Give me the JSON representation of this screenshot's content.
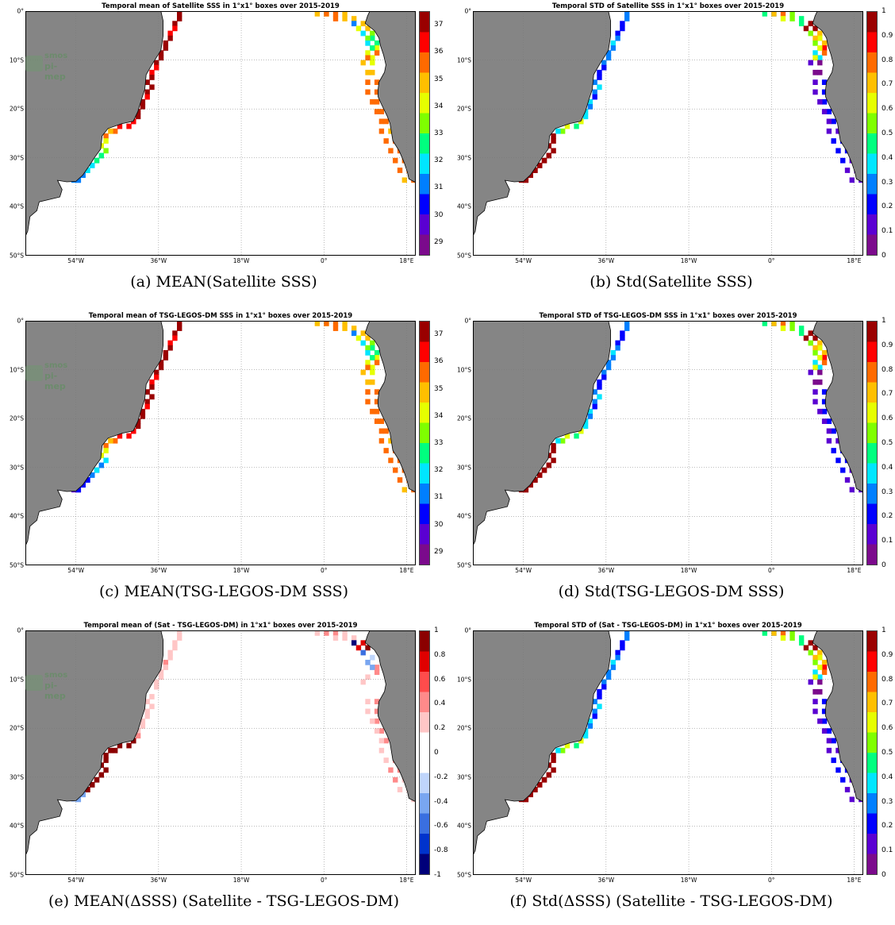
{
  "map_axes": {
    "lat_labels": [
      "0°",
      "10°S",
      "20°S",
      "30°S",
      "40°S",
      "50°S"
    ],
    "lat_values": [
      0,
      -10,
      -20,
      -30,
      -40,
      -50
    ],
    "lon_labels": [
      "54°W",
      "36°W",
      "18°W",
      "0°",
      "18°E"
    ],
    "lon_values": [
      -54,
      -36,
      -18,
      0,
      18
    ],
    "extent": {
      "lon_min": -65,
      "lon_max": 20,
      "lat_min": -50,
      "lat_max": 0
    },
    "grid": "dotted",
    "land_color": "#858585",
    "ocean_color": "#ffffff"
  },
  "watermark": {
    "line1": "smos",
    "line2": "pi-mep"
  },
  "colormaps": {
    "jet": [
      "#7b0a8c",
      "#5a00d2",
      "#0000ff",
      "#007fff",
      "#00e6ff",
      "#00ff7f",
      "#7fff00",
      "#e6ff00",
      "#ffbf00",
      "#ff6a00",
      "#ff0000",
      "#9a0000"
    ],
    "diverging": [
      "#00007a",
      "#0033cc",
      "#3a6fe0",
      "#79a6f0",
      "#bfd5fb",
      "#ffffff",
      "#ffffff",
      "#ffc6c6",
      "#ff8a8a",
      "#ff4c4c",
      "#e00000",
      "#8b0000"
    ]
  },
  "panels": [
    {
      "title": "Temporal mean of Satellite SSS in 1°x1° boxes over 2015-2019",
      "caption": "(a) MEAN(Satellite SSS)",
      "colorbar": {
        "cmap": "jet",
        "min": 28.5,
        "max": 37.5,
        "ticks": [
          "37",
          "36",
          "35",
          "34",
          "33",
          "32",
          "31",
          "30",
          "29"
        ],
        "tick_values": [
          37,
          36,
          35,
          34,
          33,
          32,
          31,
          30,
          29
        ]
      },
      "field": "mean_sss_sat",
      "show_watermark": true
    },
    {
      "title": "Temporal STD of Satellite SSS in 1°x1° boxes over 2015-2019",
      "caption": "(b) Std(Satellite SSS)",
      "colorbar": {
        "cmap": "jet",
        "min": 0,
        "max": 1,
        "ticks": [
          "1",
          "0.9",
          "0.8",
          "0.7",
          "0.6",
          "0.5",
          "0.4",
          "0.3",
          "0.2",
          "0.1",
          "0"
        ],
        "tick_values": [
          1,
          0.9,
          0.8,
          0.7,
          0.6,
          0.5,
          0.4,
          0.3,
          0.2,
          0.1,
          0
        ]
      },
      "field": "std_sss_sat",
      "show_watermark": false
    },
    {
      "title": "Temporal mean of TSG-LEGOS-DM SSS in 1°x1° boxes over 2015-2019",
      "caption": "(c) MEAN(TSG-LEGOS-DM SSS)",
      "colorbar": {
        "cmap": "jet",
        "min": 28.5,
        "max": 37.5,
        "ticks": [
          "37",
          "36",
          "35",
          "34",
          "33",
          "32",
          "31",
          "30",
          "29"
        ],
        "tick_values": [
          37,
          36,
          35,
          34,
          33,
          32,
          31,
          30,
          29
        ]
      },
      "field": "mean_sss_tsg",
      "show_watermark": true
    },
    {
      "title": "Temporal STD of TSG-LEGOS-DM SSS in 1°x1° boxes over 2015-2019",
      "caption": "(d) Std(TSG-LEGOS-DM SSS)",
      "colorbar": {
        "cmap": "jet",
        "min": 0,
        "max": 1,
        "ticks": [
          "1",
          "0.9",
          "0.8",
          "0.7",
          "0.6",
          "0.5",
          "0.4",
          "0.3",
          "0.2",
          "0.1",
          "0"
        ],
        "tick_values": [
          1,
          0.9,
          0.8,
          0.7,
          0.6,
          0.5,
          0.4,
          0.3,
          0.2,
          0.1,
          0
        ]
      },
      "field": "std_sss_tsg",
      "show_watermark": false
    },
    {
      "title": "Temporal mean of (Sat - TSG-LEGOS-DM) in 1°x1° boxes over 2015-2019",
      "caption": "(e) MEAN(ΔSSS) (Satellite - TSG-LEGOS-DM)",
      "colorbar": {
        "cmap": "diverging",
        "min": -1,
        "max": 1,
        "ticks": [
          "1",
          "0.8",
          "0.6",
          "0.4",
          "0.2",
          "0",
          "-0.2",
          "-0.4",
          "-0.6",
          "-0.8",
          "-1"
        ],
        "tick_values": [
          1,
          0.8,
          0.6,
          0.4,
          0.2,
          0,
          -0.2,
          -0.4,
          -0.6,
          -0.8,
          -1
        ]
      },
      "field": "mean_dsss",
      "show_watermark": true
    },
    {
      "title": "Temporal STD of (Sat - TSG-LEGOS-DM) in 1°x1° boxes over 2015-2019",
      "caption": "(f) Std(ΔSSS) (Satellite - TSG-LEGOS-DM)",
      "colorbar": {
        "cmap": "jet",
        "min": 0,
        "max": 1,
        "ticks": [
          "1",
          "0.9",
          "0.8",
          "0.7",
          "0.6",
          "0.5",
          "0.4",
          "0.3",
          "0.2",
          "0.1",
          "0"
        ],
        "tick_values": [
          1,
          0.9,
          0.8,
          0.7,
          0.6,
          0.5,
          0.4,
          0.3,
          0.2,
          0.1,
          0
        ]
      },
      "field": "std_dsss",
      "show_watermark": false
    }
  ],
  "coast": {
    "south_america": [
      [
        -65,
        0
      ],
      [
        -35.5,
        0
      ],
      [
        -35,
        -2
      ],
      [
        -35,
        -5
      ],
      [
        -35.5,
        -8
      ],
      [
        -37.5,
        -11
      ],
      [
        -38.7,
        -13
      ],
      [
        -39,
        -16
      ],
      [
        -39.7,
        -18
      ],
      [
        -40.5,
        -20.5
      ],
      [
        -41.5,
        -22.5
      ],
      [
        -44,
        -23
      ],
      [
        -47,
        -24
      ],
      [
        -48.3,
        -25.5
      ],
      [
        -48.6,
        -28.2
      ],
      [
        -50,
        -30
      ],
      [
        -51,
        -31.5
      ],
      [
        -52.5,
        -33.5
      ],
      [
        -54,
        -34.8
      ],
      [
        -56,
        -34.9
      ],
      [
        -58,
        -34.6
      ],
      [
        -57,
        -36.5
      ],
      [
        -57.5,
        -38
      ],
      [
        -62,
        -39
      ],
      [
        -62.5,
        -40.8
      ],
      [
        -64,
        -42
      ],
      [
        -64.5,
        -45
      ],
      [
        -65,
        -46
      ],
      [
        -65,
        -50
      ]
    ],
    "africa": [
      [
        20,
        0
      ],
      [
        10,
        0
      ],
      [
        9.5,
        -1
      ],
      [
        9,
        -2.5
      ],
      [
        11,
        -4
      ],
      [
        12,
        -5.5
      ],
      [
        12.3,
        -7
      ],
      [
        13,
        -9
      ],
      [
        13.5,
        -11
      ],
      [
        13.2,
        -12.5
      ],
      [
        12,
        -14.5
      ],
      [
        11.8,
        -16
      ],
      [
        11.8,
        -17.5
      ],
      [
        12.5,
        -19
      ],
      [
        13.8,
        -21.5
      ],
      [
        14.4,
        -23
      ],
      [
        15,
        -26.5
      ],
      [
        16.4,
        -28.6
      ],
      [
        17.5,
        -31
      ],
      [
        18.2,
        -33
      ],
      [
        18.5,
        -34.3
      ],
      [
        19.5,
        -34.8
      ],
      [
        20,
        -35
      ]
    ]
  },
  "tracks": {
    "brazil_tsg": [
      [
        -32,
        0
      ],
      [
        -32.5,
        -2
      ],
      [
        -33.5,
        -4
      ],
      [
        -34.5,
        -6
      ],
      [
        -35.5,
        -8
      ],
      [
        -37,
        -10
      ],
      [
        -37.5,
        -12
      ],
      [
        -38.5,
        -14
      ],
      [
        -39,
        -16
      ],
      [
        -39.5,
        -18
      ],
      [
        -40.5,
        -20
      ],
      [
        -41.5,
        -22
      ],
      [
        -43,
        -23
      ],
      [
        -46,
        -24
      ],
      [
        -48,
        -25
      ],
      [
        -48.5,
        -27
      ],
      [
        -49,
        -29
      ],
      [
        -50,
        -30
      ],
      [
        -51,
        -31
      ],
      [
        -52,
        -32
      ],
      [
        -53,
        -33
      ],
      [
        -54,
        -34
      ],
      [
        -55,
        -34.5
      ]
    ],
    "africa_tsg": [
      [
        0,
        0
      ],
      [
        2,
        -0.3
      ],
      [
        4,
        -0.6
      ],
      [
        6,
        -1
      ],
      [
        8,
        -2
      ],
      [
        9,
        -3
      ],
      [
        10,
        -4
      ],
      [
        10.5,
        -5
      ],
      [
        11,
        -6
      ],
      [
        11.5,
        -7
      ],
      [
        11,
        -8
      ],
      [
        10.5,
        -9
      ],
      [
        10,
        -10
      ],
      [
        10.5,
        -12
      ],
      [
        11,
        -14
      ],
      [
        11,
        -16
      ],
      [
        11.5,
        -18
      ],
      [
        12.5,
        -20
      ],
      [
        13.5,
        -22
      ],
      [
        14,
        -24
      ],
      [
        15,
        -26
      ],
      [
        16,
        -28
      ],
      [
        17,
        -30
      ],
      [
        18,
        -32
      ],
      [
        19,
        -34
      ]
    ]
  }
}
